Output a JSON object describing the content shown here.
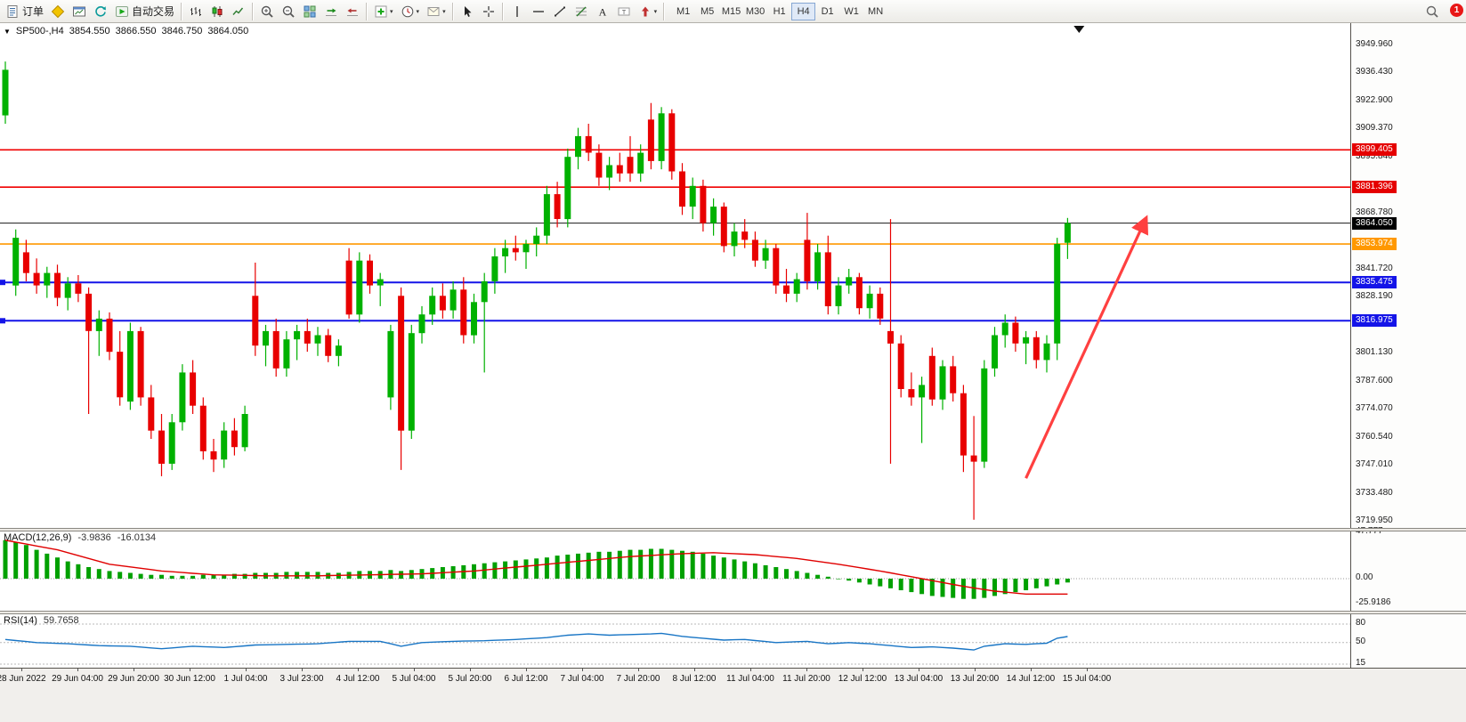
{
  "toolbar": {
    "order": {
      "label": "订单"
    },
    "autotrade": {
      "label": "自动交易"
    },
    "timeframes": [
      "M1",
      "M5",
      "M15",
      "M30",
      "H1",
      "H4",
      "D1",
      "W1",
      "MN"
    ],
    "active_timeframe": "H4",
    "notification": {
      "count": "1"
    },
    "icon_names": [
      "new-order-icon",
      "gold-diamond-icon",
      "new-chart-icon",
      "refresh-icon",
      "autotrade-icon",
      "bar-chart-icon",
      "candlestick-icon",
      "line-chart-icon",
      "zoom-in-icon",
      "zoom-out-icon",
      "tile-windows-icon",
      "auto-scroll-icon",
      "chart-shift-icon",
      "indicators-icon",
      "periods-icon",
      "templates-icon",
      "cursor-icon",
      "crosshair-icon",
      "vertical-line-icon",
      "horizontal-line-icon",
      "trendline-icon",
      "fibonacci-icon",
      "text-icon",
      "label-icon",
      "shapes-icon",
      "search-icon"
    ]
  },
  "chart_header": {
    "symbol_period": "SP500-,H4",
    "open": "3854.550",
    "high": "3866.550",
    "low": "3846.750",
    "close": "3864.050"
  },
  "price_scale": {
    "ticks": [
      "3949.960",
      "3936.430",
      "3922.900",
      "3909.370",
      "3895.840",
      "3868.780",
      "3841.720",
      "3828.190",
      "3814.660",
      "3801.130",
      "3787.600",
      "3774.070",
      "3760.540",
      "3747.010",
      "3733.480",
      "3719.950"
    ],
    "badges": [
      {
        "value": "3899.405",
        "price": 3899.405,
        "color": "#e50000",
        "text_color": "#ffffff"
      },
      {
        "value": "3881.396",
        "price": 3881.396,
        "color": "#e50000",
        "text_color": "#ffffff"
      },
      {
        "value": "3864.050",
        "price": 3864.05,
        "color": "#000000",
        "text_color": "#ffffff"
      },
      {
        "value": "3853.974",
        "price": 3853.974,
        "color": "#ff9800",
        "text_color": "#ffffff"
      },
      {
        "value": "3835.475",
        "price": 3835.475,
        "color": "#1414e8",
        "text_color": "#ffffff"
      },
      {
        "value": "3816.975",
        "price": 3816.975,
        "color": "#1414e8",
        "text_color": "#ffffff"
      }
    ]
  },
  "levels": [
    {
      "price": 3899.405,
      "color": "#f00000",
      "width": 1.6
    },
    {
      "price": 3881.396,
      "color": "#f00000",
      "width": 1.6
    },
    {
      "price": 3864.05,
      "color": "#1a1a1a",
      "width": 1
    },
    {
      "price": 3853.974,
      "color": "#ff9800",
      "width": 1.6
    },
    {
      "price": 3835.475,
      "color": "#1414e8",
      "width": 2,
      "handles": true
    },
    {
      "price": 3816.975,
      "color": "#1414e8",
      "width": 2,
      "handles": true
    }
  ],
  "macd_panel": {
    "title": "MACD(12,26,9)",
    "value_main": "-3.9836",
    "value_signal": "-16.0134",
    "scale": [
      "47.777",
      "0.00",
      "-25.9186"
    ]
  },
  "rsi_panel": {
    "title": "RSI(14)",
    "value": "59.7658",
    "scale": [
      "80",
      "50",
      "15"
    ]
  },
  "time_axis": [
    "28 Jun 2022",
    "29 Jun 04:00",
    "29 Jun 20:00",
    "30 Jun 12:00",
    "1 Jul 04:00",
    "3 Jul 23:00",
    "4 Jul 12:00",
    "5 Jul 04:00",
    "5 Jul 20:00",
    "6 Jul 12:00",
    "7 Jul 04:00",
    "7 Jul 20:00",
    "8 Jul 12:00",
    "11 Jul 04:00",
    "11 Jul 20:00",
    "12 Jul 12:00",
    "13 Jul 04:00",
    "13 Jul 20:00",
    "14 Jul 12:00",
    "15 Jul 04:00"
  ],
  "chart_data": {
    "type": "candlestick",
    "symbol": "SP500-",
    "timeframe": "H4",
    "title": "SP500-,H4",
    "price_range": [
      3712,
      3958
    ],
    "colors": {
      "up": "#00b100",
      "down": "#e80000",
      "macd_hist": "#00a000",
      "macd_signal": "#e00000",
      "rsi_line": "#1875c5"
    },
    "candles_ohlc": [
      [
        3916,
        3942,
        3912,
        3938
      ],
      [
        3834,
        3861,
        3829,
        3857
      ],
      [
        3850,
        3856,
        3836,
        3840
      ],
      [
        3840,
        3847,
        3830,
        3834
      ],
      [
        3834,
        3843,
        3828,
        3840
      ],
      [
        3840,
        3844,
        3824,
        3828
      ],
      [
        3828,
        3838,
        3822,
        3835
      ],
      [
        3835,
        3839,
        3826,
        3830
      ],
      [
        3830,
        3833,
        3772,
        3812
      ],
      [
        3812,
        3822,
        3800,
        3818
      ],
      [
        3818,
        3821,
        3798,
        3802
      ],
      [
        3802,
        3812,
        3776,
        3780
      ],
      [
        3778,
        3816,
        3774,
        3812
      ],
      [
        3812,
        3814,
        3776,
        3780
      ],
      [
        3780,
        3786,
        3760,
        3764
      ],
      [
        3764,
        3772,
        3742,
        3748
      ],
      [
        3748,
        3772,
        3745,
        3768
      ],
      [
        3768,
        3796,
        3764,
        3792
      ],
      [
        3792,
        3798,
        3772,
        3776
      ],
      [
        3776,
        3780,
        3750,
        3754
      ],
      [
        3754,
        3760,
        3744,
        3750
      ],
      [
        3750,
        3768,
        3746,
        3764
      ],
      [
        3764,
        3770,
        3752,
        3756
      ],
      [
        3756,
        3776,
        3754,
        3772
      ],
      [
        3829,
        3845,
        3800,
        3805
      ],
      [
        3805,
        3815,
        3795,
        3812
      ],
      [
        3812,
        3818,
        3790,
        3794
      ],
      [
        3794,
        3812,
        3790,
        3808
      ],
      [
        3808,
        3815,
        3798,
        3812
      ],
      [
        3812,
        3818,
        3802,
        3806
      ],
      [
        3806,
        3814,
        3800,
        3810
      ],
      [
        3810,
        3813,
        3797,
        3800
      ],
      [
        3800,
        3808,
        3795,
        3805
      ],
      [
        3846,
        3852,
        3818,
        3820
      ],
      [
        3820,
        3850,
        3816,
        3846
      ],
      [
        3846,
        3849,
        3830,
        3834
      ],
      [
        3834,
        3840,
        3824,
        3837
      ],
      [
        3780,
        3815,
        3774,
        3812
      ],
      [
        3829,
        3833,
        3745,
        3764
      ],
      [
        3764,
        3815,
        3760,
        3811
      ],
      [
        3811,
        3824,
        3806,
        3820
      ],
      [
        3820,
        3833,
        3815,
        3829
      ],
      [
        3829,
        3835,
        3818,
        3822
      ],
      [
        3822,
        3836,
        3818,
        3832
      ],
      [
        3832,
        3838,
        3806,
        3810
      ],
      [
        3810,
        3830,
        3806,
        3826
      ],
      [
        3826,
        3840,
        3792,
        3836
      ],
      [
        3836,
        3852,
        3830,
        3848
      ],
      [
        3848,
        3856,
        3840,
        3852
      ],
      [
        3852,
        3858,
        3846,
        3850
      ],
      [
        3850,
        3856,
        3842,
        3854
      ],
      [
        3854,
        3862,
        3848,
        3858
      ],
      [
        3858,
        3882,
        3854,
        3878
      ],
      [
        3878,
        3884,
        3862,
        3866
      ],
      [
        3866,
        3900,
        3862,
        3896
      ],
      [
        3896,
        3910,
        3890,
        3906
      ],
      [
        3906,
        3912,
        3894,
        3898
      ],
      [
        3898,
        3902,
        3882,
        3886
      ],
      [
        3886,
        3896,
        3880,
        3892
      ],
      [
        3892,
        3898,
        3884,
        3888
      ],
      [
        3896,
        3906,
        3884,
        3888
      ],
      [
        3888,
        3902,
        3884,
        3898
      ],
      [
        3914,
        3922,
        3890,
        3894
      ],
      [
        3894,
        3920,
        3890,
        3917
      ],
      [
        3917,
        3919,
        3885,
        3889
      ],
      [
        3889,
        3893,
        3868,
        3872
      ],
      [
        3872,
        3886,
        3866,
        3882
      ],
      [
        3882,
        3885,
        3860,
        3864
      ],
      [
        3864,
        3876,
        3858,
        3872
      ],
      [
        3872,
        3874,
        3850,
        3853
      ],
      [
        3853,
        3864,
        3848,
        3860
      ],
      [
        3860,
        3866,
        3852,
        3856
      ],
      [
        3856,
        3860,
        3843,
        3846
      ],
      [
        3846,
        3856,
        3842,
        3852
      ],
      [
        3852,
        3854,
        3830,
        3834
      ],
      [
        3834,
        3842,
        3826,
        3830
      ],
      [
        3830,
        3840,
        3826,
        3837
      ],
      [
        3856,
        3869,
        3832,
        3836
      ],
      [
        3836,
        3854,
        3832,
        3850
      ],
      [
        3850,
        3858,
        3820,
        3824
      ],
      [
        3824,
        3838,
        3820,
        3834
      ],
      [
        3834,
        3842,
        3830,
        3838
      ],
      [
        3838,
        3840,
        3820,
        3823
      ],
      [
        3823,
        3834,
        3818,
        3830
      ],
      [
        3830,
        3833,
        3815,
        3818
      ],
      [
        3812,
        3866,
        3748,
        3806
      ],
      [
        3806,
        3810,
        3780,
        3784
      ],
      [
        3784,
        3792,
        3776,
        3780
      ],
      [
        3780,
        3790,
        3758,
        3786
      ],
      [
        3800,
        3804,
        3776,
        3779
      ],
      [
        3779,
        3798,
        3774,
        3795
      ],
      [
        3795,
        3800,
        3778,
        3782
      ],
      [
        3782,
        3786,
        3744,
        3752
      ],
      [
        3752,
        3771,
        3721,
        3749
      ],
      [
        3749,
        3798,
        3746,
        3794
      ],
      [
        3794,
        3814,
        3790,
        3810
      ],
      [
        3810,
        3820,
        3804,
        3816
      ],
      [
        3816,
        3819,
        3802,
        3806
      ],
      [
        3806,
        3812,
        3796,
        3809
      ],
      [
        3809,
        3812,
        3794,
        3798
      ],
      [
        3798,
        3810,
        3792,
        3806
      ],
      [
        3806,
        3857,
        3798,
        3854
      ],
      [
        3854.55,
        3866.55,
        3846.75,
        3864.05
      ]
    ],
    "macd": {
      "params": [
        12,
        26,
        9
      ],
      "current_main": -3.9836,
      "current_signal": -16.0134,
      "histogram": [
        40,
        38,
        35,
        30,
        26,
        22,
        18,
        15,
        12,
        10,
        8,
        7,
        6,
        5,
        4,
        4,
        3,
        3,
        3,
        4,
        4,
        4,
        5,
        5,
        6,
        6,
        6,
        7,
        7,
        7,
        7,
        6,
        6,
        7,
        8,
        8,
        8,
        9,
        8,
        9,
        10,
        11,
        12,
        13,
        14,
        15,
        16,
        17,
        18,
        19,
        20,
        21,
        22,
        24,
        25,
        26,
        27,
        28,
        28,
        29,
        30,
        30,
        31,
        31,
        30,
        29,
        28,
        26,
        24,
        22,
        20,
        18,
        16,
        14,
        12,
        10,
        8,
        6,
        4,
        2,
        0,
        -2,
        -4,
        -6,
        -8,
        -10,
        -12,
        -14,
        -16,
        -18,
        -19,
        -20,
        -21,
        -21,
        -20,
        -18,
        -16,
        -14,
        -12,
        -10,
        -8,
        -6,
        -4
      ],
      "signal_anchor_points": [
        [
          0,
          40
        ],
        [
          5,
          30
        ],
        [
          10,
          15
        ],
        [
          15,
          8
        ],
        [
          20,
          4
        ],
        [
          25,
          3
        ],
        [
          30,
          3
        ],
        [
          35,
          4
        ],
        [
          40,
          5
        ],
        [
          45,
          8
        ],
        [
          50,
          13
        ],
        [
          55,
          18
        ],
        [
          60,
          23
        ],
        [
          65,
          26
        ],
        [
          68,
          27
        ],
        [
          72,
          25
        ],
        [
          76,
          21
        ],
        [
          80,
          15
        ],
        [
          84,
          8
        ],
        [
          88,
          0
        ],
        [
          92,
          -8
        ],
        [
          95,
          -13
        ],
        [
          98,
          -16
        ],
        [
          102,
          -16
        ]
      ]
    },
    "rsi": {
      "period": 14,
      "current": 59.7658,
      "levels": [
        80,
        50,
        15
      ],
      "anchor_points": [
        [
          0,
          55
        ],
        [
          3,
          50
        ],
        [
          6,
          48
        ],
        [
          9,
          45
        ],
        [
          12,
          44
        ],
        [
          15,
          40
        ],
        [
          18,
          44
        ],
        [
          21,
          42
        ],
        [
          24,
          46
        ],
        [
          27,
          47
        ],
        [
          30,
          48
        ],
        [
          33,
          52
        ],
        [
          36,
          52
        ],
        [
          38,
          44
        ],
        [
          40,
          50
        ],
        [
          43,
          52
        ],
        [
          46,
          53
        ],
        [
          49,
          55
        ],
        [
          52,
          58
        ],
        [
          54,
          62
        ],
        [
          56,
          64
        ],
        [
          58,
          62
        ],
        [
          60,
          63
        ],
        [
          62,
          64
        ],
        [
          63,
          65
        ],
        [
          65,
          60
        ],
        [
          67,
          57
        ],
        [
          69,
          54
        ],
        [
          71,
          55
        ],
        [
          74,
          50
        ],
        [
          77,
          52
        ],
        [
          79,
          48
        ],
        [
          81,
          50
        ],
        [
          83,
          48
        ],
        [
          85,
          45
        ],
        [
          87,
          42
        ],
        [
          89,
          43
        ],
        [
          91,
          41
        ],
        [
          93,
          38
        ],
        [
          94,
          44
        ],
        [
          96,
          48
        ],
        [
          98,
          47
        ],
        [
          100,
          49
        ],
        [
          101,
          57
        ],
        [
          102,
          59.77
        ]
      ]
    },
    "annotation_arrow": {
      "from": [
        98,
        3741
      ],
      "to": [
        109.5,
        3866
      ],
      "color": "#ff4040"
    },
    "top_marker_index": 103.1
  }
}
